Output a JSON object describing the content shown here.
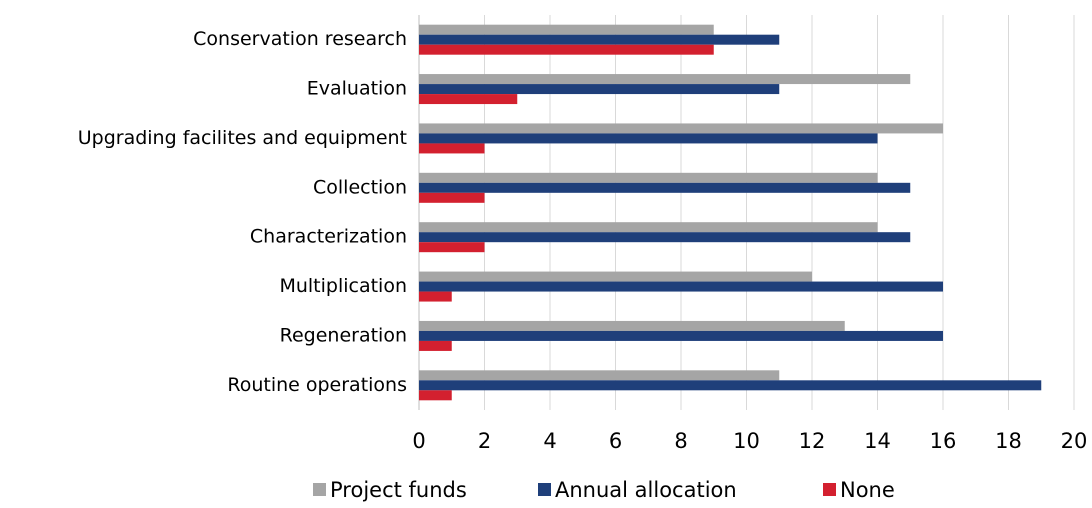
{
  "chart_data": {
    "type": "bar",
    "orientation": "horizontal",
    "categories": [
      "Conservation research",
      "Evaluation",
      "Upgrading facilites and equipment",
      "Collection",
      "Characterization",
      "Multiplication",
      "Regeneration",
      "Routine operations"
    ],
    "series": [
      {
        "name": "Project funds",
        "color": "#a5a5a5",
        "values": [
          9,
          15,
          16,
          14,
          14,
          12,
          13,
          11
        ]
      },
      {
        "name": "Annual allocation",
        "color": "#1f3f7a",
        "values": [
          11,
          11,
          14,
          15,
          15,
          16,
          16,
          19
        ]
      },
      {
        "name": "None",
        "color": "#d3202f",
        "values": [
          9,
          3,
          2,
          2,
          2,
          1,
          1,
          1
        ]
      }
    ],
    "xlim": [
      0,
      20
    ],
    "xticks": [
      0,
      2,
      4,
      6,
      8,
      10,
      12,
      14,
      16,
      18,
      20
    ],
    "grid": true,
    "legend": "bottom"
  }
}
